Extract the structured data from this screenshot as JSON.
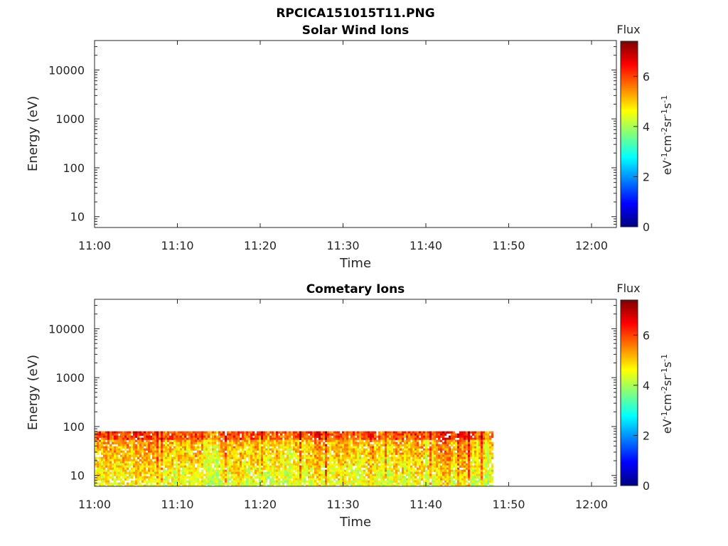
{
  "figure": {
    "filename": "RPCICA151015T11.PNG"
  },
  "colormap": {
    "name": "jet",
    "stops": [
      "#00007f",
      "#0000ff",
      "#007fff",
      "#00ffff",
      "#7fff7f",
      "#ffff00",
      "#ff7f00",
      "#ff0000",
      "#7f0000"
    ]
  },
  "chart_data": [
    {
      "type": "heatmap",
      "title": "Solar Wind Ions",
      "xlabel": "Time",
      "ylabel": "Energy (eV)",
      "x_ticks": [
        "11:00",
        "11:10",
        "11:20",
        "11:30",
        "11:40",
        "11:50",
        "12:00"
      ],
      "x_range": [
        "11:00",
        "12:03"
      ],
      "y_scale": "log",
      "y_ticks": [
        "10",
        "100",
        "1000",
        "10000"
      ],
      "y_range": [
        6,
        40000
      ],
      "colorbar": {
        "title": "Flux",
        "label": "eV-1cm-2sr-1s-1",
        "ticks": [
          "0",
          "2",
          "4",
          "6"
        ],
        "range": [
          0,
          7.4
        ]
      },
      "data_coverage": {
        "start": null,
        "end": null,
        "energy_min": null,
        "energy_max": null
      }
    },
    {
      "type": "heatmap",
      "title": "Cometary Ions",
      "xlabel": "Time",
      "ylabel": "Energy (eV)",
      "x_ticks": [
        "11:00",
        "11:10",
        "11:20",
        "11:30",
        "11:40",
        "11:50",
        "12:00"
      ],
      "x_range": [
        "11:00",
        "12:03"
      ],
      "y_scale": "log",
      "y_ticks": [
        "10",
        "100",
        "1000",
        "10000"
      ],
      "y_range": [
        6,
        40000
      ],
      "colorbar": {
        "title": "Flux",
        "label": "eV-1cm-2sr-1s-1",
        "ticks": [
          "0",
          "2",
          "4",
          "6"
        ],
        "range": [
          0,
          7.4
        ]
      },
      "data_coverage": {
        "start": "11:00",
        "end": "11:48",
        "energy_min": 6,
        "energy_max": 80
      }
    }
  ]
}
